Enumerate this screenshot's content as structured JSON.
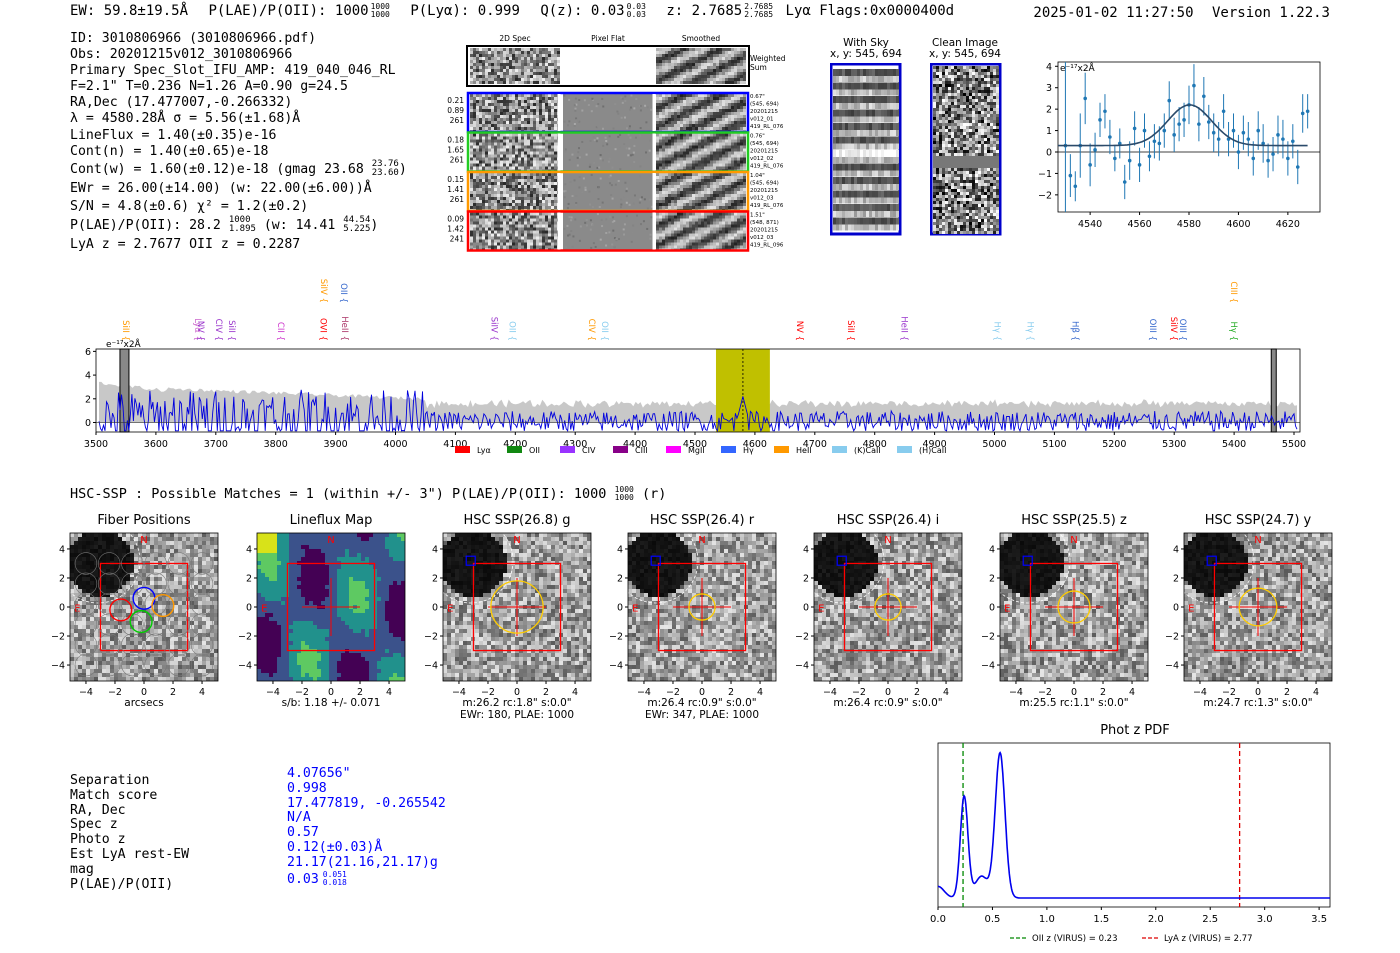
{
  "header": {
    "ew": "EW: 59.8±19.5Å",
    "plae_label": "P(LAE)/P(OII): 1000",
    "plae_hi": "1000",
    "plae_lo": "1000",
    "plya": "P(Lyα): 0.999",
    "qz_label": "Q(z): 0.03",
    "qz_hi": "0.03",
    "qz_lo": "0.03",
    "z_label": "z: 2.7685",
    "z_hi": "2.7685",
    "z_lo": "2.7685",
    "lya_flags": "Lyα  Flags:0x0000400d",
    "timestamp": "2025-01-02 11:27:50",
    "version": "Version 1.22.3"
  },
  "info": {
    "lines": [
      "ID: 3010806966 (3010806966.pdf)",
      "Obs: 20201215v012_3010806966",
      "Primary Spec_Slot_IFU_AMP: 419_040_046_RL",
      "F=2.1\"  T=0.236  N=1.26  A=0.90  g=24.5",
      "RA,Dec (17.477007,-0.266332)",
      "λ = 4580.28Å  σ = 5.56(±1.68)Å",
      "LineFlux = 1.40(±0.35)e-16",
      "Cont(n) = 1.40(±0.65)e-18"
    ],
    "contw": "Cont(w) = 1.60(±0.12)e-18 (gmag 23.68",
    "contw_hi": "23.76",
    "contw_lo": "23.60",
    "contw_end": ")",
    "ewr": "EWr = 26.00(±14.00) (w: 22.00(±6.00))Å",
    "sn": "S/N = 4.8(±0.6)  χ² = 1.2(±0.2)",
    "plae": "P(LAE)/P(OII): 28.2",
    "plae_hi": "1000",
    "plae_lo": "1.895",
    "plae_w": "(w: 14.41",
    "plae_w_hi": "44.54",
    "plae_w_lo": "5.225",
    "plae_end": ")",
    "lyaz": "LyA z = 2.7677  OII z = 0.2287"
  },
  "spec2d": {
    "col_titles": [
      "2D Spec",
      "Pixel Flat",
      "Smoothed"
    ],
    "weighted_label": "Weighted\nSum",
    "rows": [
      {
        "left": [
          "0.21",
          "0.89",
          "261"
        ],
        "right": [
          "0.67\"",
          "(545, 694)",
          "20201215",
          "v012_01",
          "419_RL_076"
        ],
        "color": "#0000ff"
      },
      {
        "left": [
          "0.18",
          "1.65",
          "261"
        ],
        "right": [
          "0.76\"",
          "(545, 694)",
          "20201215",
          "v012_02",
          "419_RL_076"
        ],
        "color": "#22cc22"
      },
      {
        "left": [
          "0.15",
          "1.41",
          "261"
        ],
        "right": [
          "1.04\"",
          "(545, 694)",
          "20201215",
          "v012_03",
          "419_RL_076"
        ],
        "color": "#ff9900"
      },
      {
        "left": [
          "0.09",
          "1.42",
          "241"
        ],
        "right": [
          "1.51\"",
          "(548, 871)",
          "20201215",
          "v012_03",
          "419_RL_096"
        ],
        "color": "#ff0000"
      }
    ]
  },
  "sky": {
    "with_sky_title": "With Sky",
    "with_sky_sub": "x, y: 545, 694",
    "clean_title": "Clean Image",
    "clean_sub": "x, y: 545, 694"
  },
  "zoom_chart": {
    "type": "scatter",
    "title": "",
    "unit_label": "e⁻¹⁷x2Å",
    "xlim": [
      4527,
      4633
    ],
    "ylim": [
      -2.8,
      4.2
    ],
    "xticks": [
      4540,
      4560,
      4580,
      4600,
      4620
    ],
    "yticks": [
      4,
      3,
      2,
      1,
      0,
      -1,
      -2
    ],
    "points": [
      [
        4530,
        0.3,
        4.0
      ],
      [
        4532,
        -1.1,
        1.0
      ],
      [
        4534,
        -1.6,
        0.7
      ],
      [
        4536,
        0.3,
        1.5
      ],
      [
        4538,
        2.5,
        1.2
      ],
      [
        4540,
        -0.6,
        1.0
      ],
      [
        4542,
        0.1,
        0.8
      ],
      [
        4544,
        1.5,
        0.8
      ],
      [
        4546,
        1.9,
        0.8
      ],
      [
        4548,
        0.7,
        0.8
      ],
      [
        4550,
        -0.3,
        0.6
      ],
      [
        4552,
        0.4,
        0.7
      ],
      [
        4554,
        -1.4,
        0.8
      ],
      [
        4556,
        -0.4,
        0.9
      ],
      [
        4558,
        1.1,
        0.8
      ],
      [
        4560,
        -0.6,
        0.8
      ],
      [
        4562,
        1.0,
        0.8
      ],
      [
        4564,
        -0.2,
        0.7
      ],
      [
        4566,
        0.5,
        0.8
      ],
      [
        4568,
        0.4,
        0.8
      ],
      [
        4570,
        1.0,
        0.8
      ],
      [
        4572,
        2.4,
        0.9
      ],
      [
        4574,
        0.8,
        0.8
      ],
      [
        4576,
        1.3,
        0.8
      ],
      [
        4578,
        1.5,
        0.8
      ],
      [
        4580,
        2.2,
        0.9
      ],
      [
        4582,
        3.1,
        1.0
      ],
      [
        4584,
        1.3,
        0.8
      ],
      [
        4586,
        2.6,
        0.9
      ],
      [
        4588,
        1.4,
        0.8
      ],
      [
        4590,
        0.9,
        0.9
      ],
      [
        4592,
        0.6,
        0.8
      ],
      [
        4594,
        1.9,
        0.8
      ],
      [
        4596,
        0.6,
        0.8
      ],
      [
        4598,
        1.0,
        0.8
      ],
      [
        4600,
        0.0,
        0.8
      ],
      [
        4602,
        0.9,
        0.8
      ],
      [
        4604,
        0.6,
        0.8
      ],
      [
        4606,
        -0.3,
        0.8
      ],
      [
        4608,
        1.0,
        0.9
      ],
      [
        4610,
        0.4,
        0.9
      ],
      [
        4612,
        -0.4,
        0.8
      ],
      [
        4614,
        -0.1,
        0.8
      ],
      [
        4616,
        0.8,
        0.9
      ],
      [
        4618,
        0.6,
        0.9
      ],
      [
        4620,
        -0.3,
        0.8
      ],
      [
        4622,
        0.5,
        0.8
      ],
      [
        4624,
        -0.7,
        0.8
      ],
      [
        4626,
        1.8,
        0.9
      ],
      [
        4628,
        1.9,
        0.8
      ]
    ],
    "fit": {
      "center": 4580.28,
      "sigma": 5.56,
      "amp": 1.9,
      "base": 0.3
    }
  },
  "full_spectrum": {
    "type": "line",
    "unit_label": "e⁻¹⁷x2Å",
    "xlim": [
      3500,
      5510
    ],
    "ylim": [
      -0.8,
      6.2
    ],
    "xticks": [
      3500,
      3600,
      3700,
      3800,
      3900,
      4000,
      4100,
      4200,
      4300,
      4400,
      4500,
      4600,
      4700,
      4800,
      4900,
      5000,
      5100,
      5200,
      5300,
      5400,
      5500
    ],
    "yticks": [
      6,
      4,
      2,
      0
    ],
    "highlight": [
      4535,
      4625
    ],
    "line_center": 4580,
    "line_names": [
      {
        "name": "SiII",
        "x": 3545,
        "color": "#ff9900",
        "row": 1
      },
      {
        "name": "Lyα",
        "x": 3665,
        "color": "#cc66cc",
        "row": 1
      },
      {
        "name": "NV",
        "x": 3670,
        "color": "#9933cc",
        "row": 1
      },
      {
        "name": "CIV",
        "x": 3700,
        "color": "#9933cc",
        "row": 1
      },
      {
        "name": "SiII",
        "x": 3722,
        "color": "#9933cc",
        "row": 1
      },
      {
        "name": "CII",
        "x": 3804,
        "color": "#cc33cc",
        "row": 1
      },
      {
        "name": "SiIV",
        "x": 3876,
        "color": "#ff9900",
        "row": 2
      },
      {
        "name": "OVI",
        "x": 3875,
        "color": "#ff0000",
        "row": 1
      },
      {
        "name": "OII",
        "x": 3909,
        "color": "#3366cc",
        "row": 2
      },
      {
        "name": "HeII",
        "x": 3911,
        "color": "#aa3366",
        "row": 1
      },
      {
        "name": "SiIV",
        "x": 4160,
        "color": "#9933cc",
        "row": 1
      },
      {
        "name": "OII",
        "x": 4190,
        "color": "#88ccee",
        "row": 1
      },
      {
        "name": "CIV",
        "x": 4323,
        "color": "#ff9900",
        "row": 1
      },
      {
        "name": "OII",
        "x": 4345,
        "color": "#88ccee",
        "row": 1
      },
      {
        "name": "NV",
        "x": 4670,
        "color": "#ff0000",
        "row": 1
      },
      {
        "name": "SiII",
        "x": 4755,
        "color": "#ff0000",
        "row": 1
      },
      {
        "name": "HeII",
        "x": 4845,
        "color": "#9933cc",
        "row": 1
      },
      {
        "name": "Hγ",
        "x": 5000,
        "color": "#88ccee",
        "row": 1
      },
      {
        "name": "Hγ",
        "x": 5055,
        "color": "#88ccee",
        "row": 1
      },
      {
        "name": "Hβ",
        "x": 5130,
        "color": "#3366cc",
        "row": 1
      },
      {
        "name": "OIII",
        "x": 5260,
        "color": "#3366cc",
        "row": 1
      },
      {
        "name": "SiIV",
        "x": 5295,
        "color": "#ff0000",
        "row": 1
      },
      {
        "name": "OIII",
        "x": 5310,
        "color": "#3366cc",
        "row": 1
      },
      {
        "name": "CIII",
        "x": 5395,
        "color": "#ff9900",
        "row": 2
      },
      {
        "name": "Hγ",
        "x": 5395,
        "color": "#22aa22",
        "row": 1
      }
    ],
    "legend": [
      {
        "label": "Lyα",
        "color": "#ff0000"
      },
      {
        "label": "OII",
        "color": "#118811"
      },
      {
        "label": "CIV",
        "color": "#9933ff"
      },
      {
        "label": "CIII",
        "color": "#880088"
      },
      {
        "label": "MgII",
        "color": "#ff00ff"
      },
      {
        "label": "Hγ",
        "color": "#3366ff"
      },
      {
        "label": "HeII",
        "color": "#ff9900"
      },
      {
        "label": "(K)CaII",
        "color": "#88ccee"
      },
      {
        "label": "(H)CaII",
        "color": "#88ccee"
      }
    ]
  },
  "hsc_summary": {
    "text": "HSC-SSP : Possible Matches = 1 (within +/- 3\")  P(LAE)/P(OII): 1000",
    "hi": "1000",
    "lo": "1000",
    "end": "(r)"
  },
  "cutouts": [
    {
      "title": "Fiber Positions",
      "cap1": "arcsecs",
      "cap2": "",
      "kind": "fiber"
    },
    {
      "title": "Lineflux Map",
      "cap1": "s/b: 1.18 +/- 0.071",
      "cap2": "",
      "kind": "flux"
    },
    {
      "title": "HSC SSP(26.8) g",
      "cap1": "m:26.2 rc:1.8\"  s:0.0\"",
      "cap2": "EWr: 180, PLAE: 1000",
      "kind": "img",
      "r": 1.8
    },
    {
      "title": "HSC SSP(26.4) r",
      "cap1": "m:26.4 rc:0.9\"  s:0.0\"",
      "cap2": "EWr: 347, PLAE: 1000",
      "kind": "img",
      "r": 0.9
    },
    {
      "title": "HSC SSP(26.4) i",
      "cap1": "m:26.4 rc:0.9\"  s:0.0\"",
      "cap2": "",
      "kind": "img",
      "r": 0.9
    },
    {
      "title": "HSC SSP(25.5) z",
      "cap1": "m:25.5 rc:1.1\"  s:0.0\"",
      "cap2": "",
      "kind": "img",
      "r": 1.1
    },
    {
      "title": "HSC SSP(24.7) y",
      "cap1": "m:24.7 rc:1.3\"  s:0.0\"",
      "cap2": "",
      "kind": "img",
      "r": 1.3
    }
  ],
  "cutout_axis": {
    "ticks": [
      "4",
      "2",
      "0",
      "−2",
      "−4"
    ],
    "xticks": [
      "−4",
      "−2",
      "0",
      "2",
      "4"
    ],
    "n_label": "N",
    "e_label": "E"
  },
  "match": {
    "labels": [
      "Separation",
      "Match score",
      "RA, Dec",
      "Spec z",
      "Photo z",
      "Est LyA rest-EW",
      "mag",
      "P(LAE)/P(OII)"
    ],
    "values": [
      "4.07656\"",
      "0.998",
      "17.477819, -0.265542",
      "N/A",
      "0.57",
      "0.12(±0.03)Å",
      "21.17(21.16,21.17)g",
      "0.03"
    ],
    "plae_hi": "0.051",
    "plae_lo": "0.018"
  },
  "photz_chart": {
    "type": "line",
    "title": "Phot z PDF",
    "xlim": [
      0.0,
      3.6
    ],
    "xticks": [
      "0.0",
      "0.5",
      "1.0",
      "1.5",
      "2.0",
      "2.5",
      "3.0",
      "3.5"
    ],
    "oii_z": 0.23,
    "lya_z": 2.77,
    "legend_oii": "OII z (VIRUS) = 0.23",
    "legend_lya": "LyA z (VIRUS) = 2.77",
    "colors": {
      "oii": "#008800",
      "lya": "#dd0000",
      "pdf": "#0000ee"
    }
  }
}
